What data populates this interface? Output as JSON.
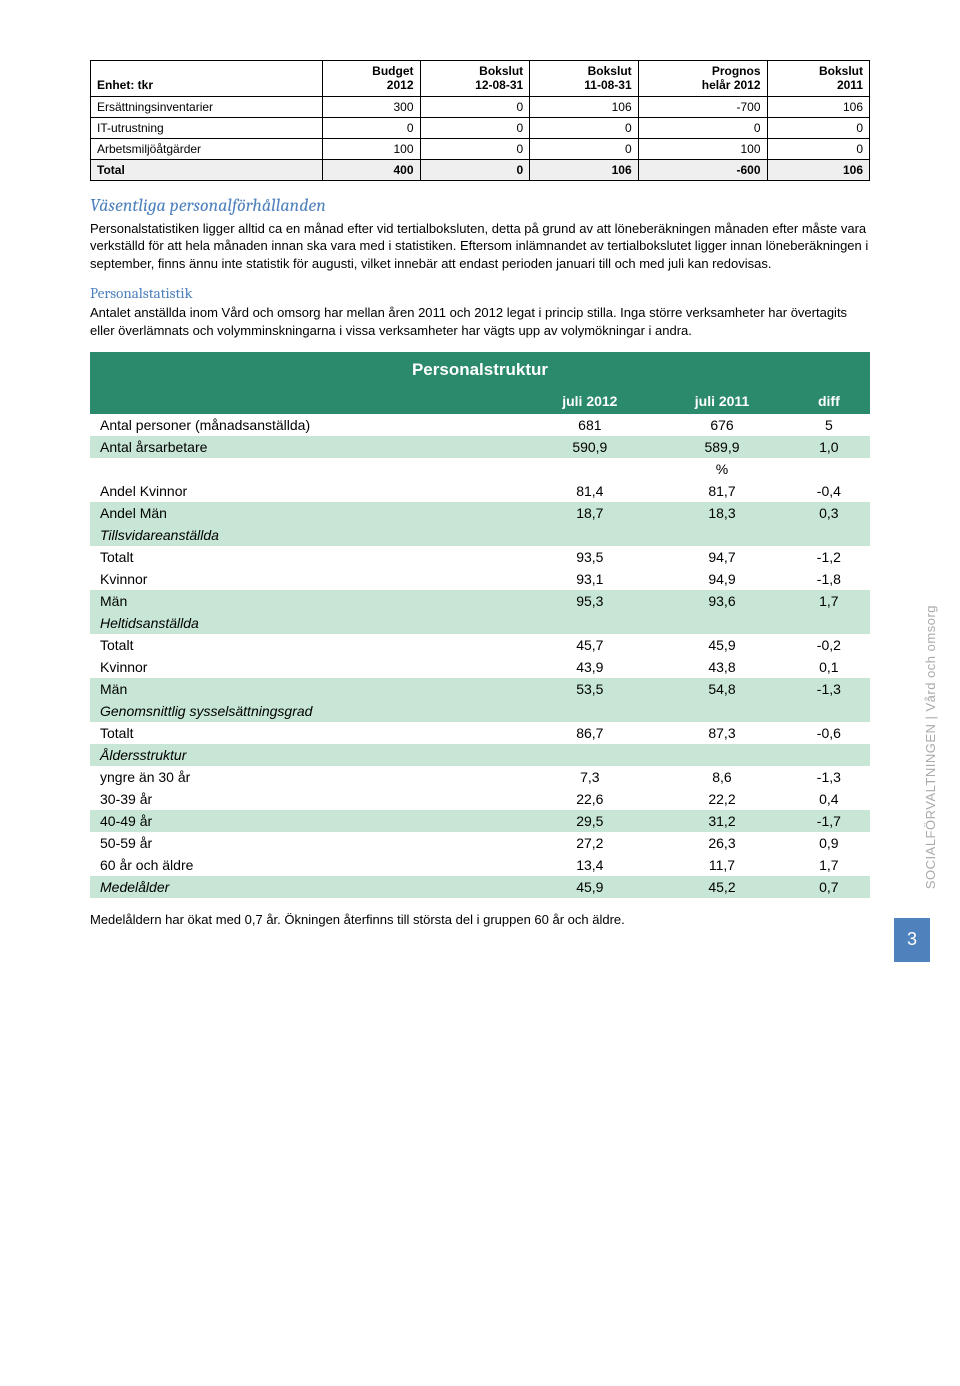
{
  "table1": {
    "headers": [
      "Enhet: tkr",
      "Budget\n2012",
      "Bokslut\n12-08-31",
      "Bokslut\n11-08-31",
      "Prognos\nhelår 2012",
      "Bokslut\n2011"
    ],
    "rows": [
      [
        "Ersättningsinventarier",
        "300",
        "0",
        "106",
        "-700",
        "106"
      ],
      [
        "IT-utrustning",
        "0",
        "0",
        "0",
        "0",
        "0"
      ],
      [
        "Arbetsmiljöåtgärder",
        "100",
        "0",
        "0",
        "100",
        "0"
      ]
    ],
    "total": [
      "Total",
      "400",
      "0",
      "106",
      "-600",
      "106"
    ]
  },
  "section1": {
    "heading": "Väsentliga personalförhållanden",
    "para": "Personalstatistiken ligger alltid ca en månad efter vid tertialboksluten, detta på grund av att löneberäkningen månaden efter måste vara verkställd för att hela månaden innan ska vara med i statistiken. Eftersom inlämnandet av tertialbokslutet ligger innan löneberäkningen i september, finns ännu inte statistik för augusti, vilket innebär att endast perioden januari till och med juli kan redovisas."
  },
  "section2": {
    "heading": "Personalstatistik",
    "para": "Antalet anställda inom Vård och omsorg har mellan åren 2011 och 2012 legat i princip stilla. Inga större verksamheter har övertagits eller överlämnats och volymminskningarna i vissa verksamheter har vägts upp av volymökningar i andra."
  },
  "table2": {
    "title": "Personalstruktur",
    "head": [
      "",
      "juli 2012",
      "juli 2011",
      "diff"
    ],
    "rows": [
      {
        "cells": [
          "Antal personer (månadsanställda)",
          "681",
          "676",
          "5"
        ],
        "band": "white"
      },
      {
        "cells": [
          "Antal årsarbetare",
          "590,9",
          "589,9",
          "1,0"
        ],
        "band": "light"
      },
      {
        "cells": [
          "",
          "",
          "%",
          ""
        ],
        "band": "white"
      },
      {
        "cells": [
          "Andel Kvinnor",
          "81,4",
          "81,7",
          "-0,4"
        ],
        "band": "white"
      },
      {
        "cells": [
          "Andel Män",
          "18,7",
          "18,3",
          "0,3"
        ],
        "band": "light"
      },
      {
        "cells": [
          "Tillsvidareanställda",
          "",
          "",
          ""
        ],
        "band": "light",
        "italic": true
      },
      {
        "cells": [
          "Totalt",
          "93,5",
          "94,7",
          "-1,2"
        ],
        "band": "white"
      },
      {
        "cells": [
          "Kvinnor",
          "93,1",
          "94,9",
          "-1,8"
        ],
        "band": "white"
      },
      {
        "cells": [
          "Män",
          "95,3",
          "93,6",
          "1,7"
        ],
        "band": "light"
      },
      {
        "cells": [
          "Heltidsanställda",
          "",
          "",
          ""
        ],
        "band": "light",
        "italic": true
      },
      {
        "cells": [
          "Totalt",
          "45,7",
          "45,9",
          "-0,2"
        ],
        "band": "white"
      },
      {
        "cells": [
          "Kvinnor",
          "43,9",
          "43,8",
          "0,1"
        ],
        "band": "white"
      },
      {
        "cells": [
          "Män",
          "53,5",
          "54,8",
          "-1,3"
        ],
        "band": "light"
      },
      {
        "cells": [
          "Genomsnittlig sysselsättningsgrad",
          "",
          "",
          ""
        ],
        "band": "light",
        "italic": true
      },
      {
        "cells": [
          "Totalt",
          "86,7",
          "87,3",
          "-0,6"
        ],
        "band": "white"
      },
      {
        "cells": [
          "Åldersstruktur",
          "",
          "",
          ""
        ],
        "band": "light",
        "italic": true
      },
      {
        "cells": [
          "yngre än 30 år",
          "7,3",
          "8,6",
          "-1,3"
        ],
        "band": "white"
      },
      {
        "cells": [
          "30-39 år",
          "22,6",
          "22,2",
          "0,4"
        ],
        "band": "white"
      },
      {
        "cells": [
          "40-49 år",
          "29,5",
          "31,2",
          "-1,7"
        ],
        "band": "light"
      },
      {
        "cells": [
          "50-59 år",
          "27,2",
          "26,3",
          "0,9"
        ],
        "band": "white"
      },
      {
        "cells": [
          "60 år och äldre",
          "13,4",
          "11,7",
          "1,7"
        ],
        "band": "white"
      },
      {
        "cells": [
          "Medelålder",
          "45,9",
          "45,2",
          "0,7"
        ],
        "band": "light",
        "italic": true
      }
    ]
  },
  "footer_note": "Medelåldern har ökat med 0,7 år. Ökningen återfinns till största del i gruppen 60 år och äldre.",
  "sidebar": "SOCIALFÖRVALTNINGEN | Vård och omsorg",
  "page_num": "3"
}
